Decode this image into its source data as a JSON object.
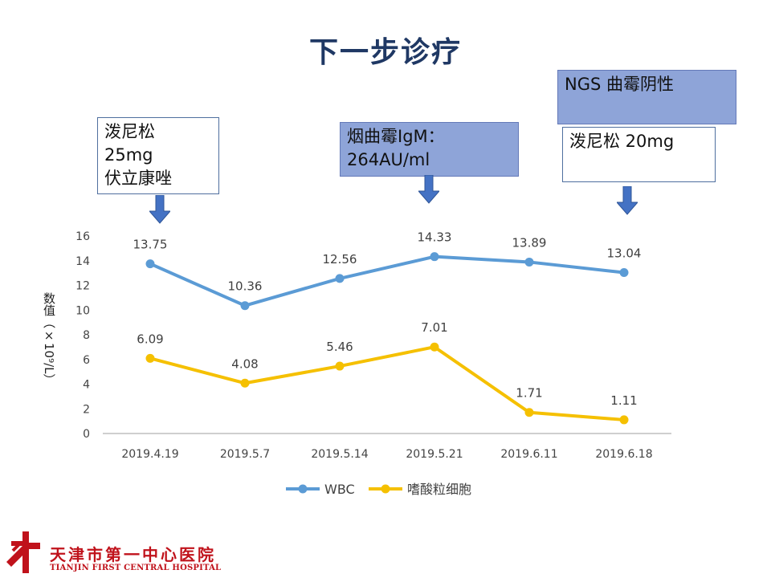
{
  "title": "下一步诊疗",
  "annotations": [
    {
      "text": "泼尼松\n25mg\n伏立康唑"
    },
    {
      "text": "烟曲霉IgM：\n264AU/ml"
    },
    {
      "text": "NGS 曲霉阴性"
    },
    {
      "text": "泼尼松 20mg"
    }
  ],
  "chart_data": {
    "type": "line",
    "categories": [
      "2019.4.19",
      "2019.5.7",
      "2019.5.14",
      "2019.5.21",
      "2019.6.11",
      "2019.6.18"
    ],
    "series": [
      {
        "name": "WBC",
        "values": [
          13.75,
          10.36,
          12.56,
          14.33,
          13.89,
          13.04
        ],
        "color": "#5b9bd5"
      },
      {
        "name": "嗜酸粒细胞",
        "values": [
          6.09,
          4.08,
          5.46,
          7.01,
          1.71,
          1.11
        ],
        "color": "#f5c000"
      }
    ],
    "ylim": [
      0,
      16
    ],
    "yticks": [
      0,
      2,
      4,
      6,
      8,
      10,
      12,
      14,
      16
    ],
    "ylabel": "数值（×10⁹/L）",
    "grid": false,
    "legend": "bottom"
  },
  "logo": {
    "name_cn": "天津市第一中心医院",
    "name_en": "TIANJIN FIRST CENTRAL HOSPITAL"
  },
  "colors": {
    "title": "#1f3864",
    "arrow": "#4472c4",
    "logo": "#c0121b"
  }
}
